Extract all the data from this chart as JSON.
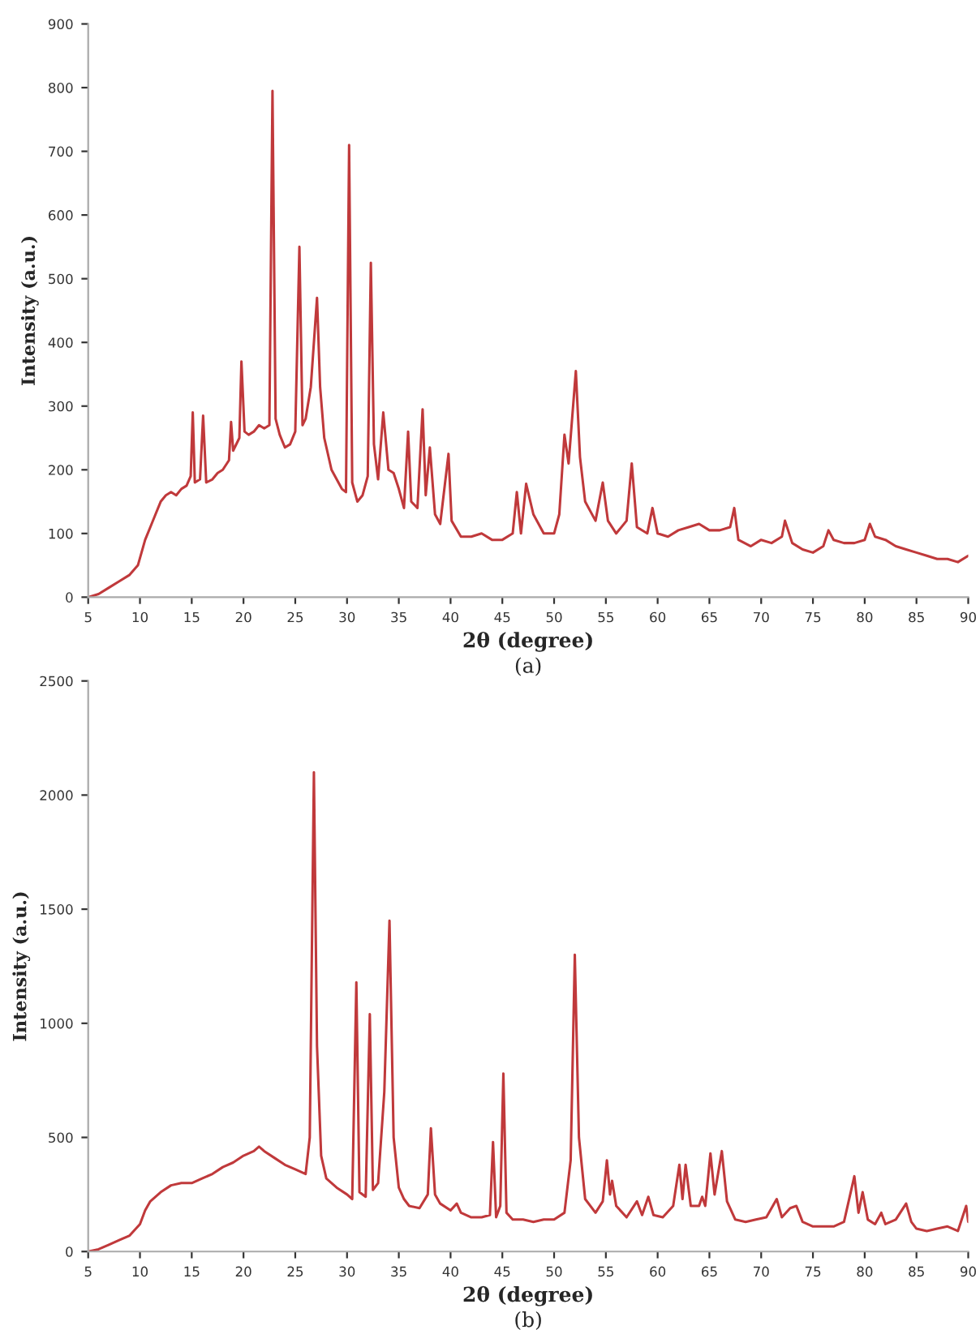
{
  "chart_data": [
    {
      "type": "line",
      "xlabel": "2θ (degree)",
      "ylabel": "Intensity (a.u.)",
      "annotations": [
        "(a)"
      ],
      "grid": false,
      "legend": false,
      "marker": "none",
      "line_style": "solid",
      "xlim": [
        5,
        90
      ],
      "xticks": [
        5,
        10,
        15,
        20,
        25,
        30,
        35,
        40,
        45,
        50,
        55,
        60,
        65,
        70,
        75,
        80,
        85,
        90
      ],
      "ylim": [
        0,
        900
      ],
      "yticks": [
        0,
        100,
        200,
        300,
        400,
        500,
        600,
        700,
        800,
        900
      ],
      "series": [
        {
          "color": "#c0393b",
          "x": [
            5,
            6,
            7,
            8,
            9,
            9.8,
            10.5,
            11,
            11.5,
            12,
            12.5,
            13,
            13.5,
            14,
            14.5,
            14.9,
            15.1,
            15.3,
            15.8,
            16.1,
            16.4,
            17,
            17.5,
            18,
            18.6,
            18.8,
            19,
            19.6,
            19.8,
            20.1,
            20.5,
            21,
            21.5,
            22,
            22.5,
            22.8,
            23.1,
            23.5,
            24,
            24.5,
            25,
            25.4,
            25.7,
            26,
            26.5,
            27.1,
            27.4,
            27.8,
            28.5,
            29,
            29.5,
            29.9,
            30.2,
            30.5,
            31,
            31.5,
            32,
            32.3,
            32.6,
            33,
            33.5,
            34,
            34.5,
            35,
            35.5,
            35.9,
            36.2,
            36.8,
            37.3,
            37.6,
            38,
            38.5,
            39,
            39.8,
            40.1,
            41,
            42,
            43,
            44,
            45,
            46,
            46.4,
            46.8,
            47.3,
            48,
            49,
            50,
            50.5,
            51,
            51.4,
            52.1,
            52.5,
            53,
            54,
            54.7,
            55.2,
            56,
            57,
            57.5,
            58,
            59,
            59.5,
            60,
            61,
            62,
            63,
            64,
            65,
            66,
            67,
            67.4,
            67.8,
            69,
            70,
            71,
            72,
            72.3,
            73,
            74,
            75,
            76,
            76.5,
            77,
            78,
            79,
            80,
            80.5,
            81,
            82,
            83,
            84,
            85,
            86,
            87,
            88,
            89,
            90
          ],
          "values": [
            0,
            5,
            15,
            25,
            35,
            50,
            90,
            110,
            130,
            150,
            160,
            165,
            160,
            170,
            175,
            190,
            290,
            180,
            185,
            285,
            180,
            185,
            195,
            200,
            215,
            275,
            230,
            250,
            370,
            260,
            255,
            260,
            270,
            265,
            270,
            795,
            280,
            255,
            235,
            240,
            260,
            550,
            270,
            280,
            330,
            470,
            330,
            250,
            200,
            185,
            170,
            165,
            710,
            180,
            150,
            160,
            190,
            525,
            240,
            185,
            290,
            200,
            195,
            170,
            140,
            260,
            150,
            140,
            295,
            160,
            235,
            130,
            115,
            225,
            120,
            95,
            95,
            100,
            90,
            90,
            100,
            165,
            100,
            178,
            130,
            100,
            100,
            130,
            255,
            210,
            355,
            220,
            150,
            120,
            180,
            120,
            100,
            120,
            210,
            110,
            100,
            140,
            100,
            95,
            105,
            110,
            115,
            105,
            105,
            110,
            140,
            90,
            80,
            90,
            85,
            95,
            120,
            85,
            75,
            70,
            80,
            105,
            90,
            85,
            85,
            90,
            115,
            95,
            90,
            80,
            75,
            70,
            65,
            60,
            60,
            55,
            65
          ]
        }
      ]
    },
    {
      "type": "line",
      "xlabel": "2θ (degree)",
      "ylabel": "Intensity (a.u.)",
      "annotations": [
        "(b)"
      ],
      "grid": false,
      "legend": false,
      "marker": "none",
      "line_style": "solid",
      "xlim": [
        5,
        90
      ],
      "xticks": [
        5,
        10,
        15,
        20,
        25,
        30,
        35,
        40,
        45,
        50,
        55,
        60,
        65,
        70,
        75,
        80,
        85,
        90
      ],
      "ylim": [
        0,
        2500
      ],
      "yticks": [
        0,
        500,
        1000,
        1500,
        2000,
        2500
      ],
      "series": [
        {
          "color": "#c0393b",
          "x": [
            5,
            6,
            7,
            8,
            9,
            10,
            10.5,
            11,
            12,
            13,
            14,
            15,
            16,
            17,
            18,
            19,
            20,
            21,
            21.5,
            22,
            23,
            24,
            25,
            26,
            26.4,
            26.8,
            27.1,
            27.5,
            28,
            29,
            30,
            30.5,
            30.9,
            31.2,
            31.8,
            32.2,
            32.5,
            33,
            33.6,
            34.1,
            34.5,
            35,
            35.5,
            36,
            37,
            37.8,
            38.1,
            38.5,
            39,
            40,
            40.6,
            41,
            42,
            43,
            43.8,
            44.1,
            44.4,
            44.8,
            45.1,
            45.4,
            46,
            47,
            48,
            49,
            50,
            51,
            51.6,
            52,
            52.4,
            53,
            54,
            54.7,
            55.1,
            55.4,
            55.6,
            56,
            57,
            58,
            58.5,
            59.1,
            59.6,
            60.5,
            61.5,
            62.1,
            62.4,
            62.7,
            63.2,
            64,
            64.3,
            64.6,
            65.1,
            65.5,
            66.2,
            66.7,
            67.5,
            68.5,
            69.5,
            70.5,
            71.5,
            72,
            72.8,
            73.4,
            74,
            75,
            76,
            77,
            78,
            79,
            79.4,
            79.8,
            80.3,
            81,
            81.6,
            82,
            83,
            84,
            84.5,
            85,
            86,
            87,
            88,
            89,
            89.8,
            90
          ],
          "values": [
            0,
            10,
            30,
            50,
            70,
            120,
            180,
            220,
            260,
            290,
            300,
            300,
            320,
            340,
            370,
            390,
            420,
            440,
            460,
            440,
            410,
            380,
            360,
            340,
            500,
            2100,
            900,
            420,
            320,
            280,
            250,
            230,
            1180,
            260,
            240,
            1040,
            270,
            300,
            700,
            1450,
            500,
            280,
            230,
            200,
            190,
            250,
            540,
            250,
            210,
            180,
            210,
            170,
            150,
            150,
            160,
            480,
            150,
            200,
            780,
            170,
            140,
            140,
            130,
            140,
            140,
            170,
            400,
            1300,
            500,
            230,
            170,
            220,
            400,
            250,
            310,
            200,
            150,
            220,
            160,
            240,
            160,
            150,
            200,
            380,
            230,
            380,
            200,
            200,
            240,
            200,
            430,
            250,
            440,
            220,
            140,
            130,
            140,
            150,
            230,
            150,
            190,
            200,
            130,
            110,
            110,
            110,
            130,
            330,
            170,
            260,
            140,
            120,
            170,
            120,
            140,
            210,
            130,
            100,
            90,
            100,
            110,
            90,
            200,
            130
          ]
        }
      ]
    }
  ]
}
